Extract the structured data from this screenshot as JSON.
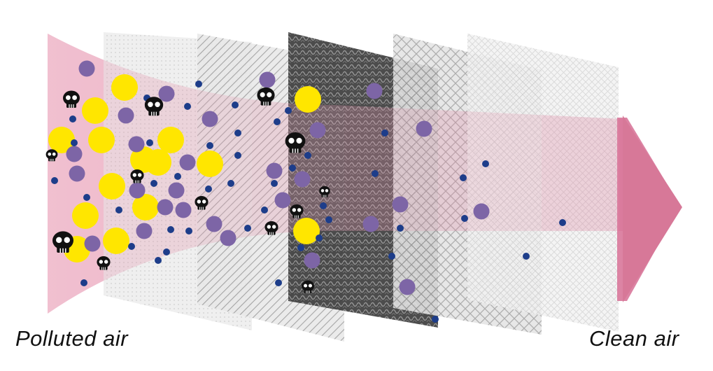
{
  "labels": {
    "left": "Polluted air",
    "right": "Clean air"
  },
  "colors": {
    "flow_pink": "#e59ab3",
    "arrow_pink": "#d97a9c",
    "yellow_particle": "#ffe600",
    "purple_particle": "#7d65a6",
    "blue_particle": "#1d3d8a",
    "skull": "#111111",
    "filter_light": "#d9d9d9",
    "filter_dark": "#4a4a4a"
  },
  "filter_layers": [
    {
      "name": "pre-filter",
      "pattern": "fine-dots"
    },
    {
      "name": "coarse-filter",
      "pattern": "diagonal-lines"
    },
    {
      "name": "carbon-filter",
      "pattern": "dark-weave"
    },
    {
      "name": "mesh-filter",
      "pattern": "cross-hatch"
    },
    {
      "name": "fine-filter",
      "pattern": "fine-grid"
    }
  ],
  "icons": {
    "skull": "skull-icon",
    "arrow": "arrow-icon"
  }
}
